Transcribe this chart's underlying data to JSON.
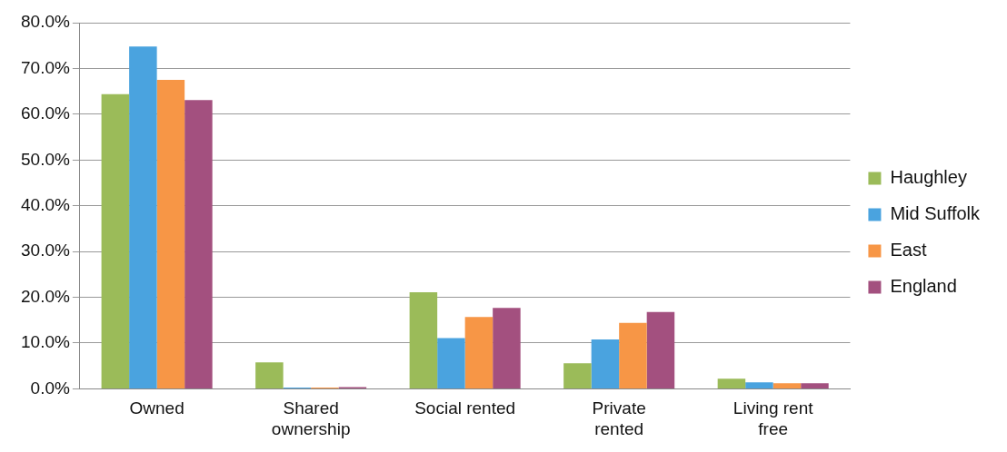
{
  "chart_data": {
    "type": "bar",
    "categories": [
      "Owned",
      "Shared ownership",
      "Social rented",
      "Private rented",
      "Living rent free"
    ],
    "series": [
      {
        "name": "Haughley",
        "color": "#9bbb59",
        "values": [
          64.4,
          5.8,
          21.1,
          5.6,
          2.2
        ]
      },
      {
        "name": "Mid Suffolk",
        "color": "#4aa3df",
        "values": [
          74.8,
          0.3,
          11.1,
          10.8,
          1.4
        ]
      },
      {
        "name": "East",
        "color": "#f79646",
        "values": [
          67.5,
          0.3,
          15.7,
          14.4,
          1.2
        ]
      },
      {
        "name": "England",
        "color": "#a3507f",
        "values": [
          63.1,
          0.4,
          17.7,
          16.8,
          1.2
        ]
      }
    ],
    "ylim": [
      0,
      80
    ],
    "yticks": [
      {
        "value": 0,
        "label": "0.0%"
      },
      {
        "value": 10,
        "label": "10.0%"
      },
      {
        "value": 20,
        "label": "20.0%"
      },
      {
        "value": 30,
        "label": "30.0%"
      },
      {
        "value": 40,
        "label": "40.0%"
      },
      {
        "value": 50,
        "label": "50.0%"
      },
      {
        "value": 60,
        "label": "60.0%"
      },
      {
        "value": 70,
        "label": "70.0%"
      },
      {
        "value": 80,
        "label": "80.0%"
      }
    ],
    "grid": "y",
    "legend": "right"
  }
}
